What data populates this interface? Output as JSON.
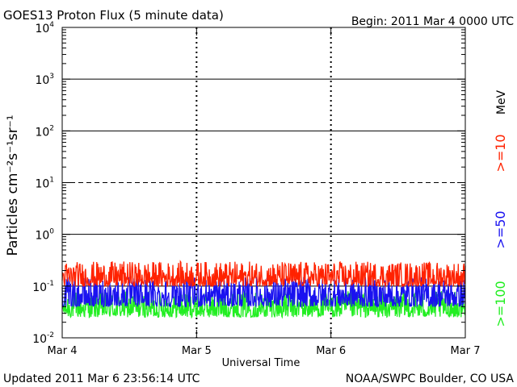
{
  "header": {
    "title": "GOES13 Proton Flux (5 minute data)",
    "begin": "Begin: 2011 Mar 4 0000 UTC"
  },
  "footer": {
    "updated": "Updated 2011 Mar  6 23:56:14 UTC",
    "credit": "NOAA/SWPC Boulder, CO USA"
  },
  "colors": {
    "red": "#ff2200",
    "blue": "#1a12f0",
    "green": "#22ee22",
    "axis": "#000000"
  },
  "chart_data": {
    "type": "line",
    "xlabel": "Universal Time",
    "ylabel": "Particles cm⁻²s⁻¹sr⁻¹",
    "xlim": [
      "2011-03-04",
      "2011-03-07"
    ],
    "x_ticks": [
      "Mar 4",
      "Mar 5",
      "Mar 6",
      "Mar 7"
    ],
    "ylim": [
      0.01,
      10000
    ],
    "yscale": "log",
    "y_ticks": [
      {
        "base": "10",
        "exp": "-2",
        "value": 0.01
      },
      {
        "base": "10",
        "exp": "-1",
        "value": 0.1
      },
      {
        "base": "10",
        "exp": "0",
        "value": 1
      },
      {
        "base": "10",
        "exp": "1",
        "value": 10
      },
      {
        "base": "10",
        "exp": "2",
        "value": 100
      },
      {
        "base": "10",
        "exp": "3",
        "value": 1000
      },
      {
        "base": "10",
        "exp": "4",
        "value": 10000
      }
    ],
    "grid": "horizontal lines at each decade; dashed at 10",
    "legend_unit": "MeV",
    "series": [
      {
        "name": ">=10",
        "color": "#ff2200",
        "typical_range": [
          0.1,
          0.3
        ]
      },
      {
        "name": ">=50",
        "color": "#1a12f0",
        "typical_range": [
          0.04,
          0.15
        ]
      },
      {
        "name": ">=100",
        "color": "#22ee22",
        "typical_range": [
          0.025,
          0.08
        ]
      }
    ]
  }
}
